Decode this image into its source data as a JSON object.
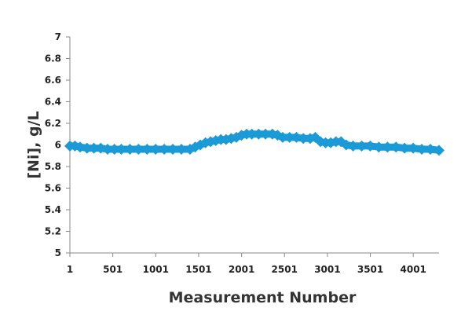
{
  "chart_data": {
    "type": "scatter",
    "title": "",
    "xlabel": "Measurement Number",
    "ylabel": "[Ni], g/L",
    "xlim": [
      1,
      4301
    ],
    "ylim": [
      5,
      7
    ],
    "x_ticks": [
      1,
      501,
      1001,
      1501,
      2001,
      2501,
      3001,
      3501,
      4001
    ],
    "x_tick_labels": [
      "1",
      "501",
      "1001",
      "1501",
      "2001",
      "2501",
      "3001",
      "3501",
      "4001"
    ],
    "y_ticks": [
      5,
      5.2,
      5.4,
      5.6,
      5.8,
      6,
      6.2,
      6.4,
      6.6,
      6.8,
      7
    ],
    "y_tick_labels": [
      "5",
      "5.2",
      "5.4",
      "5.6",
      "5.8",
      "6",
      "6.2",
      "6.4",
      "6.6",
      "6.8",
      "7"
    ],
    "grid": false,
    "legend": "none",
    "marker": "diamond",
    "color": "#1a9ad6",
    "series": [
      {
        "x": [
          1,
          60,
          120,
          200,
          280,
          360,
          440,
          520,
          600,
          700,
          800,
          900,
          1000,
          1100,
          1200,
          1300,
          1400,
          1460,
          1520,
          1580,
          1640,
          1700,
          1760,
          1820,
          1880,
          1940,
          2000,
          2060,
          2120,
          2200,
          2280,
          2360,
          2420,
          2480,
          2560,
          2640,
          2720,
          2800,
          2860,
          2920,
          2980,
          3040,
          3100,
          3160,
          3220,
          3300,
          3400,
          3500,
          3600,
          3700,
          3800,
          3900,
          4000,
          4100,
          4200,
          4301
        ],
        "y": [
          5.99,
          5.99,
          5.98,
          5.97,
          5.97,
          5.97,
          5.96,
          5.96,
          5.96,
          5.96,
          5.96,
          5.96,
          5.96,
          5.96,
          5.96,
          5.96,
          5.96,
          5.98,
          6.0,
          6.02,
          6.03,
          6.04,
          6.05,
          6.05,
          6.06,
          6.07,
          6.09,
          6.1,
          6.1,
          6.1,
          6.1,
          6.1,
          6.09,
          6.07,
          6.07,
          6.07,
          6.06,
          6.06,
          6.07,
          6.03,
          6.02,
          6.02,
          6.03,
          6.03,
          6.0,
          5.99,
          5.99,
          5.99,
          5.98,
          5.98,
          5.98,
          5.97,
          5.97,
          5.96,
          5.96,
          5.95
        ]
      }
    ]
  }
}
